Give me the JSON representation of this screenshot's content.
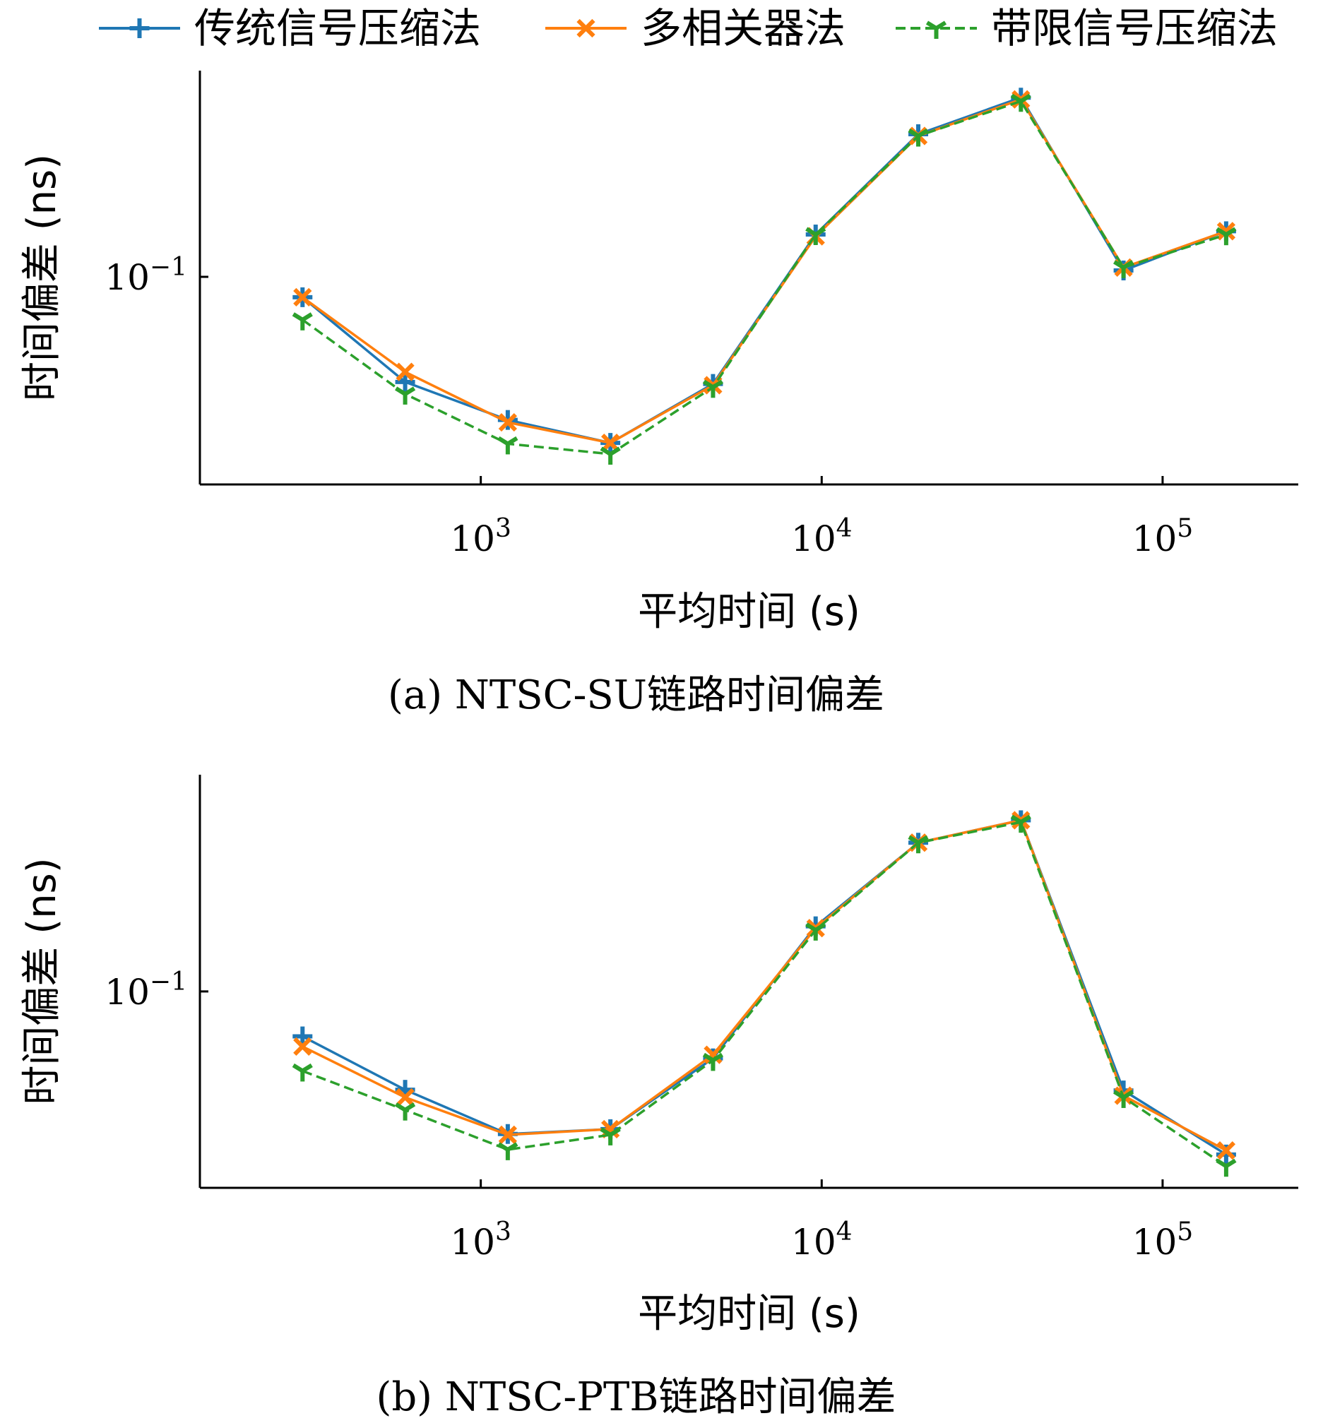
{
  "legend": {
    "entries": [
      {
        "name": "传统信号压缩法",
        "color": "#1f77b4",
        "marker": "plus",
        "dash": "solid"
      },
      {
        "name": "多相关器法",
        "color": "#ff7f0e",
        "marker": "x",
        "dash": "solid"
      },
      {
        "name": "带限信号压缩法",
        "color": "#2ca02c",
        "marker": "tri",
        "dash": "dashed"
      }
    ]
  },
  "chart_data": [
    {
      "type": "line",
      "caption": "(a) NTSC-SU链路时间偏差",
      "xlabel": "平均时间 (s)",
      "ylabel": "时间偏差 (ns)",
      "xscale": "log",
      "yscale": "log",
      "xlim": [
        150,
        250000
      ],
      "ylim": [
        0.0316,
        0.314
      ],
      "x_ticks": [
        {
          "value": 1000,
          "base": "10",
          "exp": "3"
        },
        {
          "value": 10000,
          "base": "10",
          "exp": "4"
        },
        {
          "value": 100000,
          "base": "10",
          "exp": "5"
        }
      ],
      "y_ticks": [
        {
          "value": 0.1,
          "base": "10",
          "exp": "−1"
        }
      ],
      "x": [
        300,
        600,
        1200,
        2400,
        4800,
        9600,
        19200,
        38400,
        76800,
        153600
      ],
      "series": [
        {
          "name": "传统信号压缩法",
          "values": [
            0.0893,
            0.0558,
            0.0452,
            0.0398,
            0.0552,
            0.1265,
            0.2207,
            0.2703,
            0.1036,
            0.1288
          ]
        },
        {
          "name": "多相关器法",
          "values": [
            0.0893,
            0.059,
            0.0446,
            0.0398,
            0.0548,
            0.1252,
            0.2185,
            0.2676,
            0.1053,
            0.1288
          ]
        },
        {
          "name": "带限信号压缩法",
          "values": [
            0.0788,
            0.0522,
            0.0396,
            0.0374,
            0.0542,
            0.1265,
            0.2185,
            0.265,
            0.1053,
            0.1264
          ]
        }
      ]
    },
    {
      "type": "line",
      "caption": "(b) NTSC-PTB链路时间偏差",
      "xlabel": "平均时间 (s)",
      "ylabel": "时间偏差 (ns)",
      "xscale": "log",
      "yscale": "log",
      "xlim": [
        150,
        250000
      ],
      "ylim": [
        0.0369,
        0.3005
      ],
      "x_ticks": [
        {
          "value": 1000,
          "base": "10",
          "exp": "3"
        },
        {
          "value": 10000,
          "base": "10",
          "exp": "4"
        },
        {
          "value": 100000,
          "base": "10",
          "exp": "5"
        }
      ],
      "y_ticks": [
        {
          "value": 0.1,
          "base": "10",
          "exp": "−1"
        }
      ],
      "x": [
        300,
        600,
        1200,
        2400,
        4800,
        9600,
        19200,
        38400,
        76800,
        153600
      ],
      "series": [
        {
          "name": "传统信号压缩法",
          "values": [
            0.0796,
            0.0607,
            0.0485,
            0.0497,
            0.0712,
            0.1392,
            0.2128,
            0.2385,
            0.0605,
            0.0437
          ]
        },
        {
          "name": "多相关器法",
          "values": [
            0.0756,
            0.0584,
            0.0483,
            0.0497,
            0.0725,
            0.1379,
            0.2128,
            0.2385,
            0.0589,
            0.0446
          ]
        },
        {
          "name": "带限信号压缩法",
          "values": [
            0.0668,
            0.0548,
            0.0448,
            0.0483,
            0.0705,
            0.1366,
            0.2128,
            0.2362,
            0.0584,
            0.0412
          ]
        }
      ]
    }
  ]
}
